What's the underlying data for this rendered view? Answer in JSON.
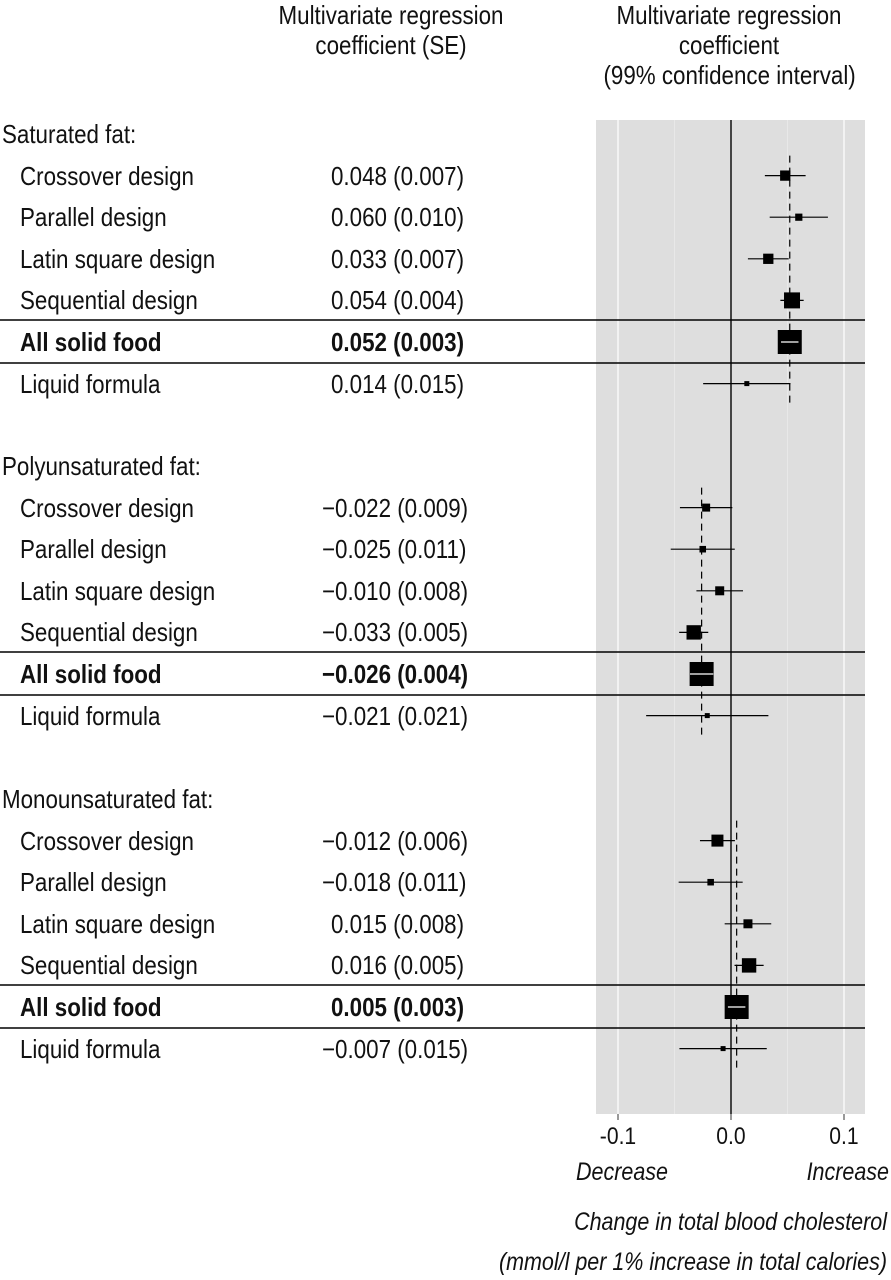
{
  "header": {
    "col_se": [
      "Multivariate regression",
      "coefficient (SE)"
    ],
    "col_ci": [
      "Multivariate regression",
      "coefficient",
      "(99% confidence interval)"
    ]
  },
  "chart_data": {
    "type": "forest",
    "xlim": [
      -0.12,
      0.12
    ],
    "xticks": [
      "-0.1",
      "0.0",
      "0.1"
    ],
    "xtick_values": [
      -0.1,
      0.0,
      0.1
    ],
    "direction_labels": {
      "left": "Decrease",
      "right": "Increase"
    },
    "xlabel": [
      "Change in total blood cholesterol",
      "(mmol/l per 1% increase in total calories)"
    ],
    "background": "#dedede",
    "groups": [
      {
        "label": "Saturated fat:",
        "pooled_estimate": 0.052,
        "rows": [
          {
            "label": "Crossover design",
            "coef_text": "0.048 (0.007)",
            "estimate": 0.048,
            "se": 0.007,
            "bold": false
          },
          {
            "label": "Parallel design",
            "coef_text": "0.060 (0.010)",
            "estimate": 0.06,
            "se": 0.01,
            "bold": false
          },
          {
            "label": "Latin square design",
            "coef_text": "0.033 (0.007)",
            "estimate": 0.033,
            "se": 0.007,
            "bold": false
          },
          {
            "label": "Sequential design",
            "coef_text": "0.054 (0.004)",
            "estimate": 0.054,
            "se": 0.004,
            "bold": false
          },
          {
            "label": "All solid food",
            "coef_text": "0.052 (0.003)",
            "estimate": 0.052,
            "se": 0.003,
            "bold": true
          },
          {
            "label": "Liquid formula",
            "coef_text": "0.014 (0.015)",
            "estimate": 0.014,
            "se": 0.015,
            "bold": false
          }
        ]
      },
      {
        "label": "Polyunsaturated fat:",
        "pooled_estimate": -0.026,
        "rows": [
          {
            "label": "Crossover design",
            "coef_text": "−0.022 (0.009)",
            "estimate": -0.022,
            "se": 0.009,
            "bold": false
          },
          {
            "label": "Parallel design",
            "coef_text": "−0.025 (0.011)",
            "estimate": -0.025,
            "se": 0.011,
            "bold": false
          },
          {
            "label": "Latin square design",
            "coef_text": "−0.010 (0.008)",
            "estimate": -0.01,
            "se": 0.008,
            "bold": false
          },
          {
            "label": "Sequential design",
            "coef_text": "−0.033 (0.005)",
            "estimate": -0.033,
            "se": 0.005,
            "bold": false
          },
          {
            "label": "All solid food",
            "coef_text": "−0.026 (0.004)",
            "estimate": -0.026,
            "se": 0.004,
            "bold": true
          },
          {
            "label": "Liquid formula",
            "coef_text": "−0.021 (0.021)",
            "estimate": -0.021,
            "se": 0.021,
            "bold": false
          }
        ]
      },
      {
        "label": "Monounsaturated fat:",
        "pooled_estimate": 0.005,
        "rows": [
          {
            "label": "Crossover design",
            "coef_text": "−0.012 (0.006)",
            "estimate": -0.012,
            "se": 0.006,
            "bold": false
          },
          {
            "label": "Parallel design",
            "coef_text": "−0.018 (0.011)",
            "estimate": -0.018,
            "se": 0.011,
            "bold": false
          },
          {
            "label": "Latin square design",
            "coef_text": "0.015 (0.008)",
            "estimate": 0.015,
            "se": 0.008,
            "bold": false
          },
          {
            "label": "Sequential design",
            "coef_text": "0.016 (0.005)",
            "estimate": 0.016,
            "se": 0.005,
            "bold": false
          },
          {
            "label": "All solid food",
            "coef_text": "0.005 (0.003)",
            "estimate": 0.005,
            "se": 0.003,
            "bold": true
          },
          {
            "label": "Liquid formula",
            "coef_text": "−0.007 (0.015)",
            "estimate": -0.007,
            "se": 0.015,
            "bold": false
          }
        ]
      }
    ]
  }
}
